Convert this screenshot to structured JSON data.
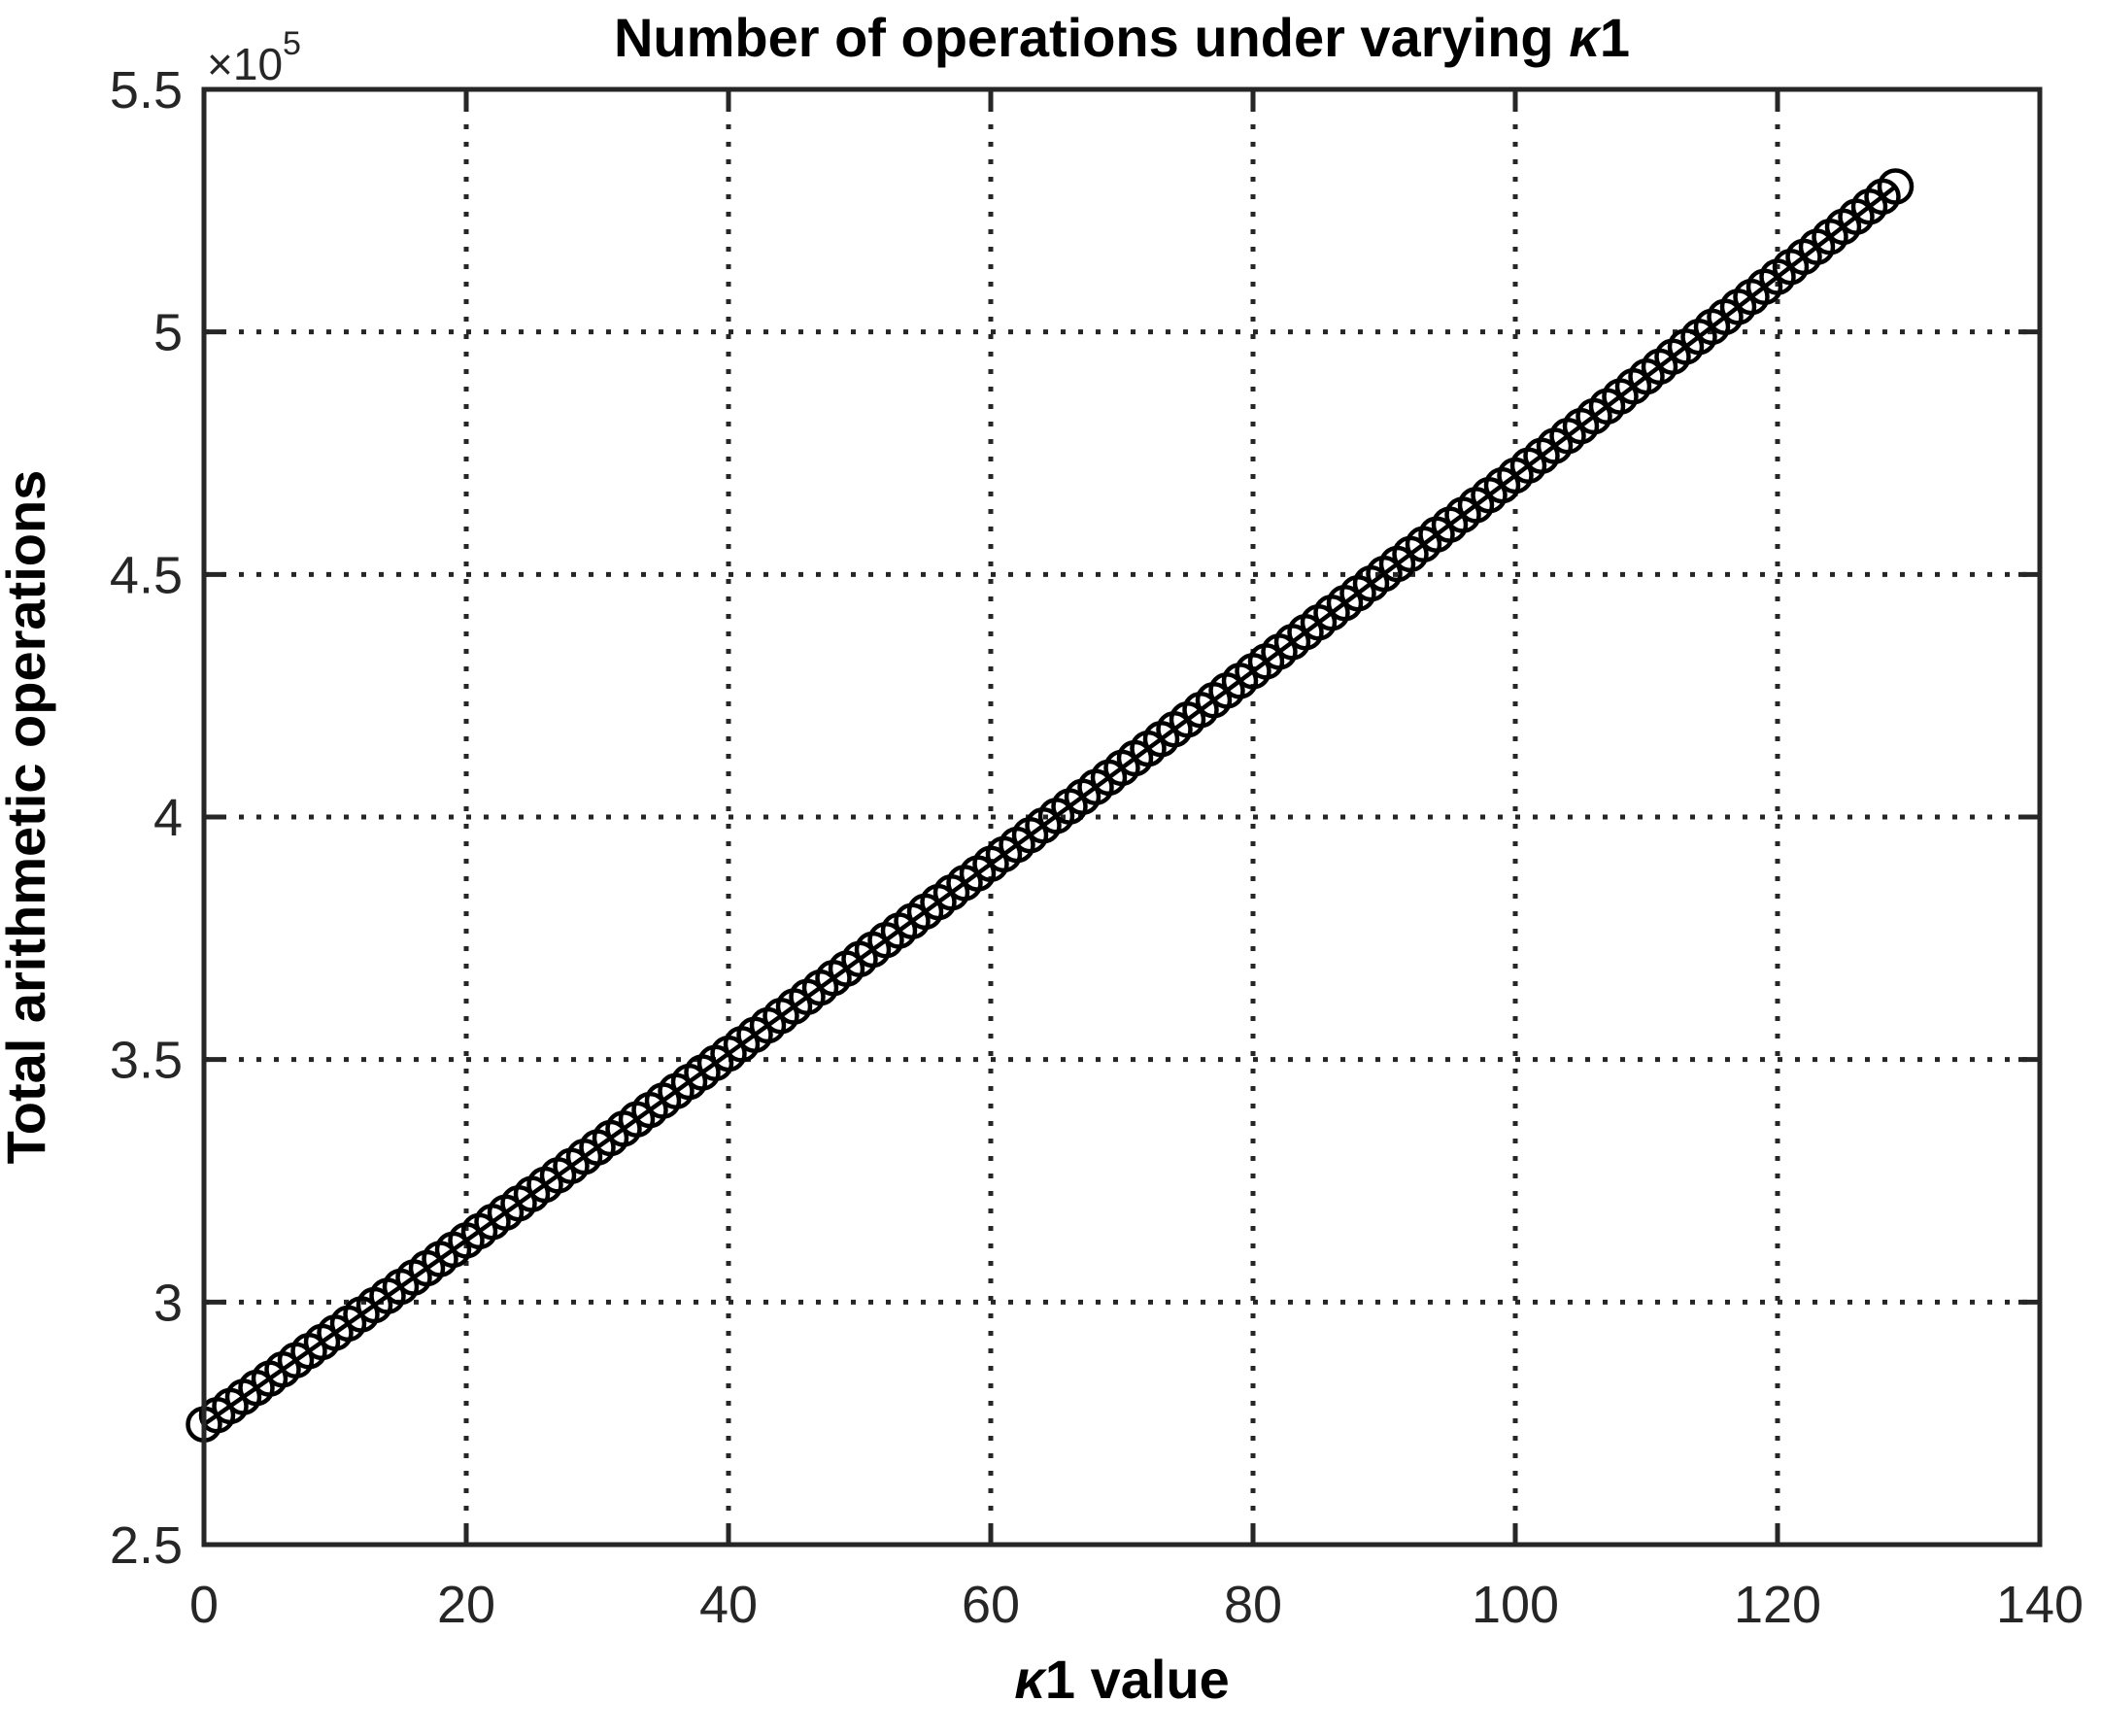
{
  "figure": {
    "background": "#ffffff"
  },
  "colors": {
    "axis": "#262626",
    "grid": "#262626",
    "series": "#000000",
    "tick_text": "#262626",
    "label_text": "#000000"
  },
  "chart_data": {
    "type": "line",
    "title": "Number of operations under varying κ1",
    "title_parts": [
      "Number of operations under varying ",
      "κ",
      "1"
    ],
    "xlabel": "κ1 value",
    "xlabel_parts": [
      "κ",
      "1 value"
    ],
    "ylabel": "Total arithmetic operations",
    "y_multiplier_prefix": "×10",
    "y_multiplier_exponent": "5",
    "xlim": [
      0,
      140
    ],
    "ylim": [
      250000,
      550000
    ],
    "x_ticks": [
      0,
      20,
      40,
      60,
      80,
      100,
      120,
      140
    ],
    "x_tick_labels": [
      "0",
      "20",
      "40",
      "60",
      "80",
      "100",
      "120",
      "140"
    ],
    "y_ticks": [
      250000,
      300000,
      350000,
      400000,
      450000,
      500000,
      550000
    ],
    "y_tick_labels": [
      "2.5",
      "3",
      "3.5",
      "4",
      "4.5",
      "5",
      "5.5"
    ],
    "grid": true,
    "grid_style": "dotted",
    "legend": null,
    "marker": "circle",
    "line_style": "solid",
    "x": [
      0,
      1,
      2,
      3,
      4,
      5,
      6,
      7,
      8,
      9,
      10,
      11,
      12,
      13,
      14,
      15,
      16,
      17,
      18,
      19,
      20,
      21,
      22,
      23,
      24,
      25,
      26,
      27,
      28,
      29,
      30,
      31,
      32,
      33,
      34,
      35,
      36,
      37,
      38,
      39,
      40,
      41,
      42,
      43,
      44,
      45,
      46,
      47,
      48,
      49,
      50,
      51,
      52,
      53,
      54,
      55,
      56,
      57,
      58,
      59,
      60,
      61,
      62,
      63,
      64,
      65,
      66,
      67,
      68,
      69,
      70,
      71,
      72,
      73,
      74,
      75,
      76,
      77,
      78,
      79,
      80,
      81,
      82,
      83,
      84,
      85,
      86,
      87,
      88,
      89,
      90,
      91,
      92,
      93,
      94,
      95,
      96,
      97,
      98,
      99,
      100,
      101,
      102,
      103,
      104,
      105,
      106,
      107,
      108,
      109,
      110,
      111,
      112,
      113,
      114,
      115,
      116,
      117,
      118,
      119,
      120,
      121,
      122,
      123,
      124,
      125,
      126,
      127,
      128,
      129
    ],
    "y": [
      274800,
      276681,
      278563,
      280447,
      282332,
      284219,
      286107,
      287997,
      289889,
      291782,
      293676,
      295572,
      297469,
      299368,
      301269,
      303171,
      305075,
      306980,
      308886,
      310794,
      312704,
      314615,
      316528,
      318442,
      320358,
      322275,
      324194,
      326114,
      328036,
      329959,
      331884,
      333810,
      335738,
      337668,
      339599,
      341531,
      343465,
      345400,
      347337,
      349276,
      351216,
      353158,
      355101,
      357045,
      358991,
      360939,
      362888,
      364839,
      366791,
      368745,
      370700,
      372657,
      374615,
      376575,
      378536,
      380499,
      382463,
      384429,
      386397,
      388366,
      390336,
      392308,
      394281,
      396256,
      398233,
      400211,
      402191,
      404172,
      406154,
      408138,
      410124,
      412111,
      414100,
      416090,
      418082,
      420075,
      422070,
      424066,
      426064,
      428063,
      430064,
      432066,
      434070,
      436076,
      438083,
      440091,
      442101,
      444112,
      446125,
      448140,
      450156,
      452174,
      454193,
      456213,
      458235,
      460259,
      462284,
      464311,
      466339,
      468369,
      470400,
      472433,
      474467,
      476503,
      478540,
      480579,
      482619,
      484661,
      486705,
      488750,
      490796,
      492844,
      494893,
      496944,
      498997,
      501051,
      503107,
      505164,
      507222,
      509282,
      511344,
      513407,
      515472,
      517538,
      519606,
      521675,
      523746,
      525818,
      527892,
      529967
    ]
  }
}
